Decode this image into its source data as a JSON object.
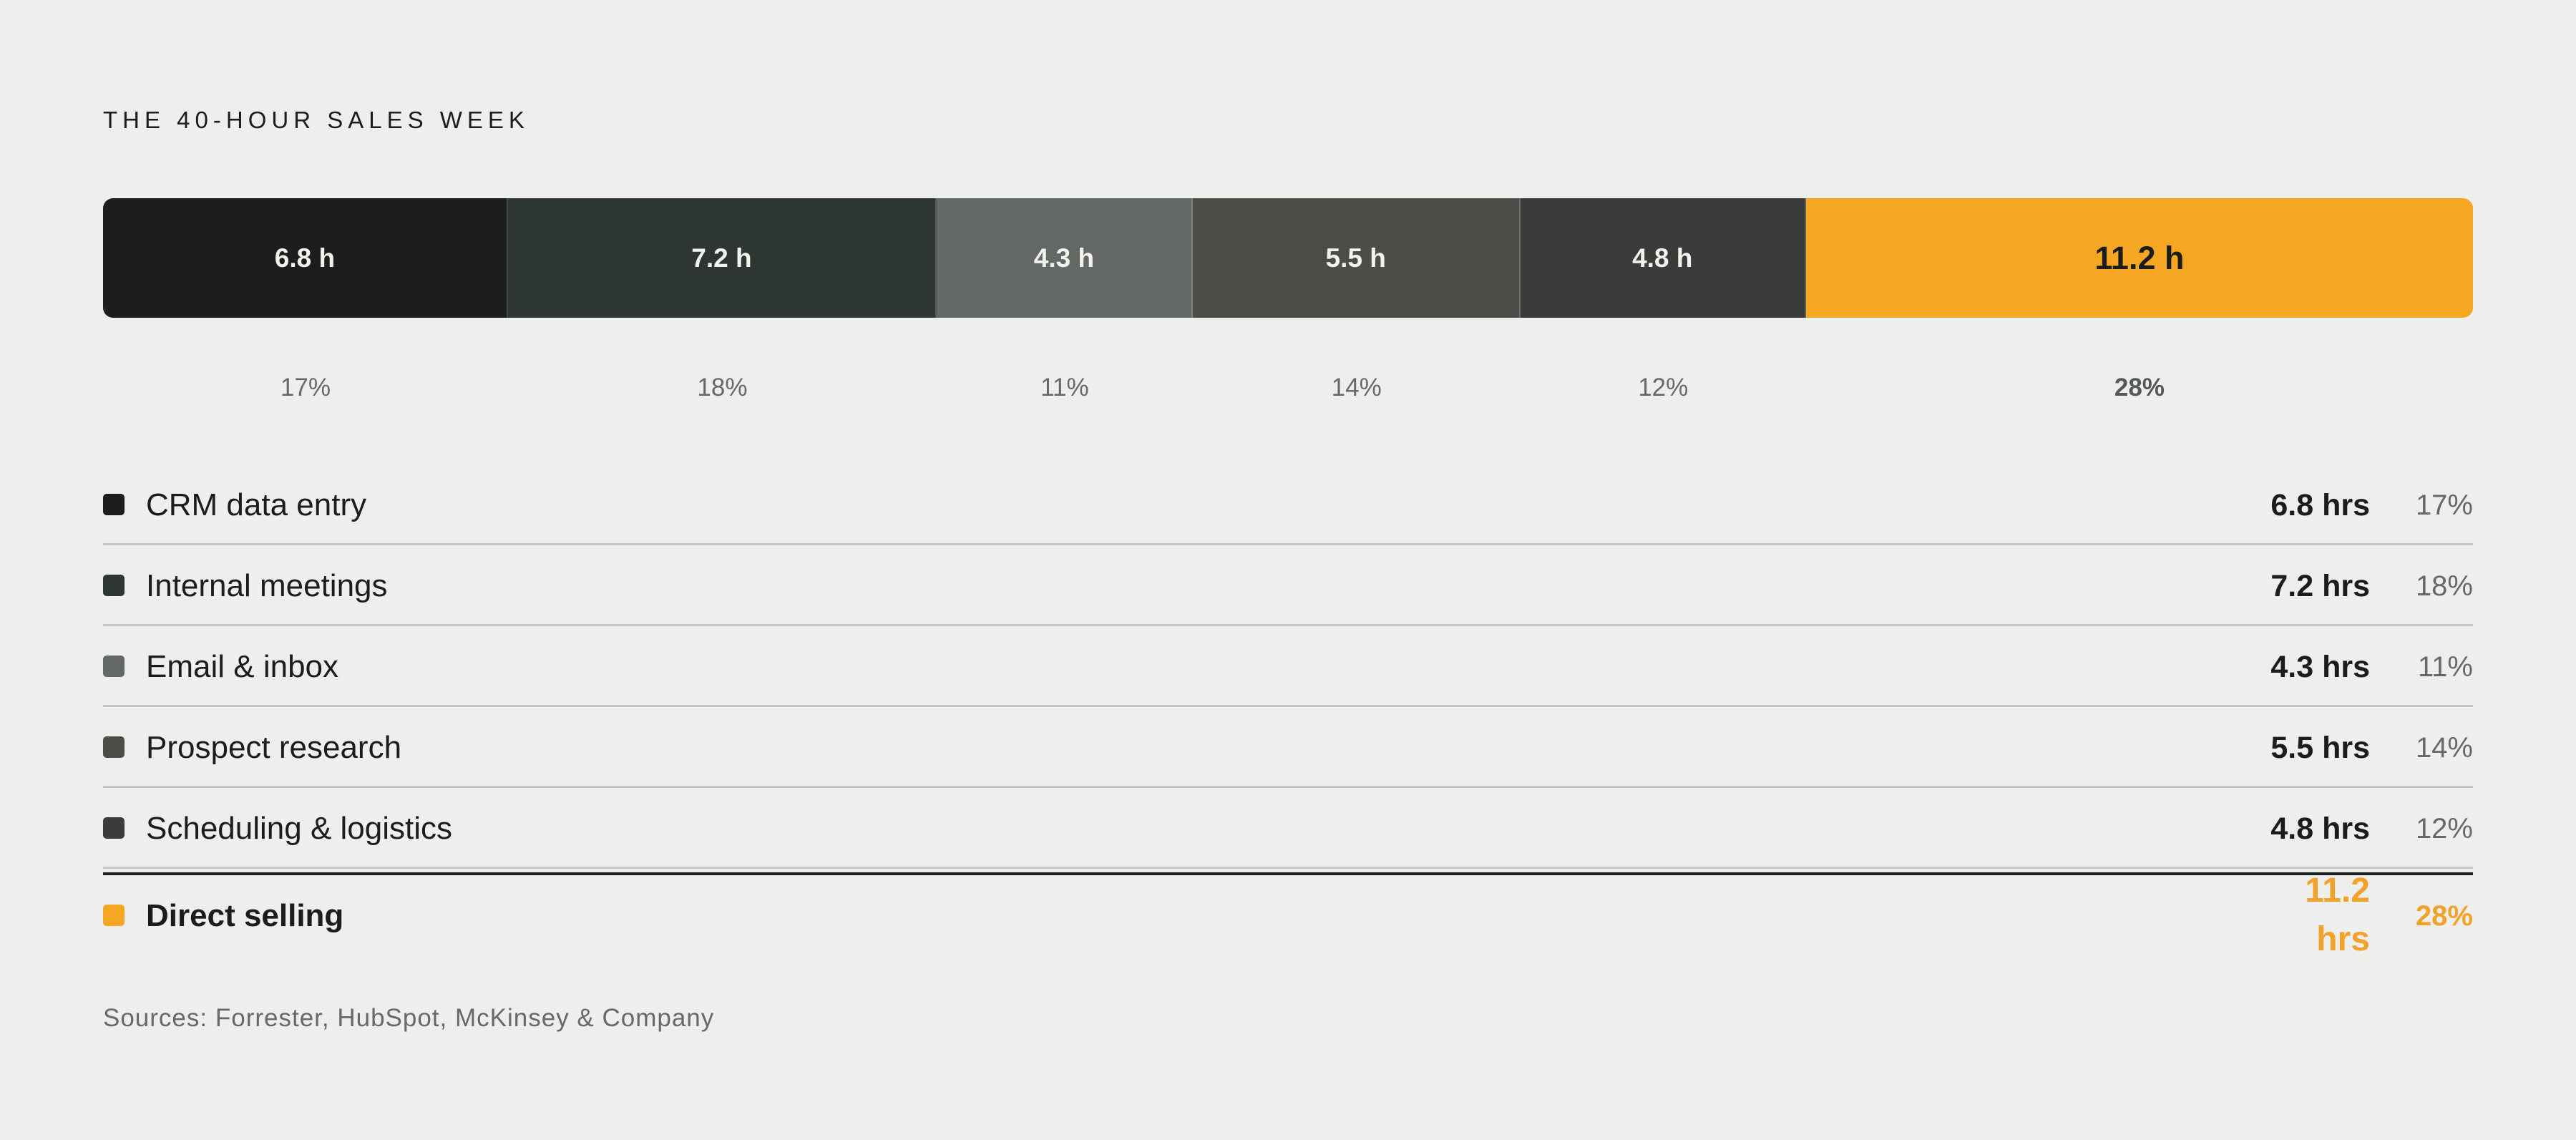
{
  "chart_data": {
    "type": "bar",
    "title": "THE 40-HOUR SALES WEEK",
    "categories": [
      "CRM data entry",
      "Internal meetings",
      "Email & inbox",
      "Prospect research",
      "Scheduling & logistics",
      "Direct selling"
    ],
    "values": [
      6.8,
      7.2,
      4.3,
      5.5,
      4.8,
      11.2
    ],
    "segment_labels": [
      "6.8 h",
      "7.2 h",
      "4.3 h",
      "5.5 h",
      "4.8 h",
      "11.2 h"
    ],
    "percent_labels": [
      "17%",
      "18%",
      "11%",
      "14%",
      "12%",
      "28%"
    ],
    "hours_labels": [
      "6.8 hrs",
      "7.2 hrs",
      "4.3 hrs",
      "5.5 hrs",
      "4.8 hrs",
      "11.2 hrs"
    ],
    "colors": [
      "#1b1e1b",
      "#2d3630",
      "#636864",
      "#4a4d48",
      "#393c38",
      "#f5a623"
    ],
    "highlight_index": 5,
    "xlabel": "",
    "ylabel": ""
  },
  "source": "Sources: Forrester, HubSpot, McKinsey & Company"
}
